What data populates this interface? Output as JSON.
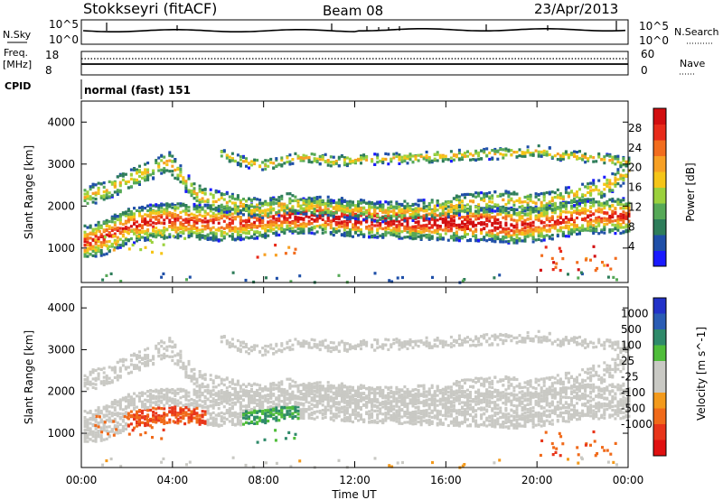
{
  "header": {
    "station": "Stokkseyri (fitACF)",
    "beam": "Beam 08",
    "date": "23/Apr/2013"
  },
  "top_panels": {
    "nsky_label": "N.Sky",
    "nsearch_label": "N.Search",
    "noise_ticks_left": [
      "10^5",
      "10^0"
    ],
    "noise_ticks_right": [
      "10^5",
      "10^0"
    ],
    "freq_label": "Freq.",
    "freq_unit": "[MHz]",
    "freq_ticks": [
      "18",
      "8"
    ],
    "nave_label": "Nave",
    "nave_ticks": [
      "60",
      "0"
    ],
    "cpid_label": "CPID",
    "cpid_value": "normal (fast) 151"
  },
  "chart_data": [
    {
      "type": "heatmap",
      "title": "",
      "ylabel": "Slant Range [km]",
      "xlabel": "",
      "x_ticks": [
        "00:00",
        "04:00",
        "08:00",
        "12:00",
        "16:00",
        "20:00",
        "00:00"
      ],
      "x_range_hours": [
        0,
        24
      ],
      "y_ticks": [
        1000,
        2000,
        3000,
        4000
      ],
      "y_range_km": [
        180,
        4500
      ],
      "colorbar": {
        "label": "Power [dB]",
        "ticks": [
          4,
          8,
          12,
          16,
          20,
          24,
          28
        ],
        "colors": [
          "#1a1aff",
          "#1f4fa8",
          "#2e7d5a",
          "#56a957",
          "#9bd13d",
          "#f5c518",
          "#f7a024",
          "#f26d1e",
          "#e82b1a",
          "#d20e10"
        ]
      },
      "bands": [
        {
          "name": "main",
          "path": [
            [
              0,
              1150
            ],
            [
              1,
              1300
            ],
            [
              2,
              1550
            ],
            [
              3,
              1650
            ],
            [
              4,
              1700
            ],
            [
              5,
              1650
            ],
            [
              6,
              1620
            ],
            [
              7,
              1650
            ],
            [
              8,
              1700
            ],
            [
              9,
              1780
            ],
            [
              10,
              1800
            ],
            [
              11,
              1760
            ],
            [
              12,
              1720
            ],
            [
              13,
              1700
            ],
            [
              14,
              1680
            ],
            [
              15,
              1650
            ],
            [
              16,
              1640
            ],
            [
              17,
              1620
            ],
            [
              18,
              1600
            ],
            [
              19,
              1560
            ],
            [
              20,
              1600
            ],
            [
              21,
              1700
            ],
            [
              22,
              1780
            ],
            [
              23,
              1800
            ],
            [
              24,
              1800
            ]
          ]
        },
        {
          "name": "upper",
          "path": [
            [
              0,
              2250
            ],
            [
              1,
              2400
            ],
            [
              2,
              2650
            ],
            [
              3,
              2900
            ],
            [
              3.8,
              3100
            ],
            [
              5,
              2300
            ],
            [
              6,
              2150
            ],
            [
              7,
              2050
            ],
            [
              8,
              1950
            ],
            [
              9,
              2100
            ],
            [
              10,
              2050
            ],
            [
              11,
              2000
            ],
            [
              12,
              1950
            ],
            [
              13,
              1900
            ],
            [
              14,
              1900
            ],
            [
              15,
              1950
            ],
            [
              16,
              2000
            ],
            [
              17,
              2100
            ],
            [
              18,
              2150
            ],
            [
              19,
              2150
            ],
            [
              20,
              2100
            ],
            [
              21,
              2200
            ],
            [
              22,
              2350
            ],
            [
              23,
              2500
            ],
            [
              24,
              2900
            ]
          ]
        },
        {
          "name": "high",
          "path": [
            [
              6,
              3300
            ],
            [
              7,
              3100
            ],
            [
              8,
              3000
            ],
            [
              9,
              3150
            ],
            [
              10,
              3200
            ],
            [
              11,
              3100
            ],
            [
              19,
              3300
            ],
            [
              20,
              3350
            ],
            [
              21,
              3250
            ],
            [
              22,
              3200
            ],
            [
              23,
              3150
            ],
            [
              24,
              3050
            ]
          ]
        }
      ]
    },
    {
      "type": "heatmap",
      "title": "",
      "ylabel": "Slant Range [km]",
      "xlabel": "Time UT",
      "x_ticks": [
        "00:00",
        "04:00",
        "08:00",
        "12:00",
        "16:00",
        "20:00",
        "00:00"
      ],
      "x_range_hours": [
        0,
        24
      ],
      "y_ticks": [
        1000,
        2000,
        3000,
        4000
      ],
      "y_range_km": [
        180,
        4500
      ],
      "colorbar": {
        "label": "Velocity [m s^-1]",
        "ticks": [
          "1000",
          "500",
          "100",
          "25",
          "-25",
          "-100",
          "-500",
          "-1000"
        ],
        "colors": [
          "#2232c8",
          "#2a5cb4",
          "#2f8a6a",
          "#4fbd3a",
          "#c9c9c4",
          "#c9c9c4",
          "#f39a1c",
          "#f06a1a",
          "#e8351a",
          "#e01010"
        ]
      }
    }
  ]
}
